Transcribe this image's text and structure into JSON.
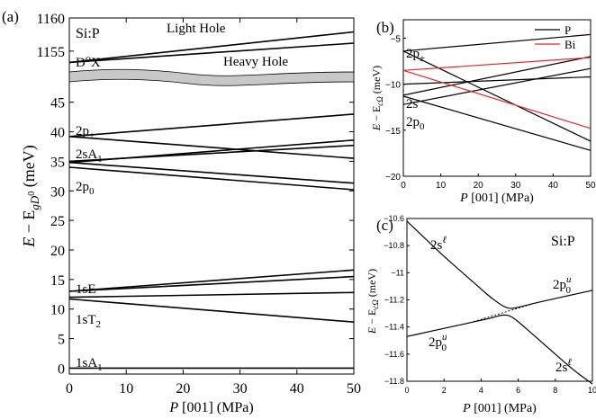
{
  "chart_data": [
    {
      "panel": "(a)",
      "type": "line",
      "annotation": "Si:P",
      "xlabel_parts": [
        "P",
        " [001] (MPa)"
      ],
      "ylabel_parts": [
        "E",
        " − E",
        "gD",
        "0",
        " (meV)"
      ],
      "xlim": [
        0,
        50
      ],
      "ylim_lower": [
        -1,
        48
      ],
      "ylim_upper": [
        1152,
        1160
      ],
      "xticks": [
        0,
        10,
        20,
        30,
        40,
        50
      ],
      "yticks_lower": [
        0,
        5,
        10,
        15,
        20,
        25,
        30,
        35,
        40,
        45
      ],
      "yticks_upper": [
        1155,
        1160
      ],
      "break_label": "D⁰X",
      "series": [
        {
          "name": "Light Hole",
          "x": [
            0,
            50
          ],
          "y": [
            1153.3,
            1157.9
          ]
        },
        {
          "name": "Heavy Hole",
          "x": [
            0,
            50
          ],
          "y": [
            1153.3,
            1156.2
          ]
        },
        {
          "name": "2p±",
          "x": [
            0,
            50
          ],
          "y": [
            39.2,
            43.0
          ]
        },
        {
          "name": "2p±",
          "x": [
            0,
            50
          ],
          "y": [
            39.2,
            35.5
          ]
        },
        {
          "name": "2sA1",
          "x": [
            0,
            50
          ],
          "y": [
            34.8,
            38.6
          ]
        },
        {
          "name": "2sA1",
          "x": [
            0,
            50
          ],
          "y": [
            35.0,
            37.7
          ]
        },
        {
          "name": "2p0",
          "x": [
            0,
            50
          ],
          "y": [
            34.8,
            31.3
          ]
        },
        {
          "name": "2p0",
          "x": [
            0,
            50
          ],
          "y": [
            34.0,
            30.2
          ]
        },
        {
          "name": "1sE",
          "x": [
            0,
            50
          ],
          "y": [
            13.0,
            16.6
          ]
        },
        {
          "name": "1sE",
          "x": [
            0,
            50
          ],
          "y": [
            13.0,
            15.5
          ]
        },
        {
          "name": "1sT2",
          "x": [
            0,
            50
          ],
          "y": [
            12.0,
            12.8
          ]
        },
        {
          "name": "1sT2",
          "x": [
            0,
            50
          ],
          "y": [
            11.7,
            7.8
          ]
        },
        {
          "name": "1sA1",
          "x": [
            0,
            50
          ],
          "y": [
            0,
            0
          ]
        }
      ],
      "labels": [
        {
          "text": "Light Hole"
        },
        {
          "text": "Heavy Hole"
        },
        {
          "text": "D⁰X"
        },
        {
          "base": "2p",
          "sub": "±"
        },
        {
          "base": "2sA",
          "sub": "1"
        },
        {
          "base": "2p",
          "sub": "0"
        },
        {
          "base": "1sE",
          "sub": ""
        },
        {
          "base": "1sT",
          "sub": "2"
        },
        {
          "base": "1sA",
          "sub": "1"
        }
      ]
    },
    {
      "panel": "(b)",
      "type": "line",
      "xlabel_parts": [
        "P",
        " [001] (MPa)"
      ],
      "ylabel_parts": [
        "E",
        " − E",
        "cΩ",
        "",
        " (meV)"
      ],
      "xlim": [
        0,
        50
      ],
      "ylim": [
        -20,
        -3
      ],
      "xticks": [
        0,
        10,
        20,
        30,
        40,
        50
      ],
      "yticks": [
        -5,
        -10,
        -15,
        -20
      ],
      "legend": {
        "position": "top-right",
        "entries": [
          {
            "name": "P",
            "color": "#000000"
          },
          {
            "name": "Bi",
            "color": "#e8262c"
          }
        ]
      },
      "series": [
        {
          "name": "P",
          "color": "#000000",
          "x": [
            0,
            50
          ],
          "y": [
            -6.4,
            -4.6
          ]
        },
        {
          "name": "P",
          "color": "#000000",
          "x": [
            0,
            50
          ],
          "y": [
            -6.4,
            -16.2
          ]
        },
        {
          "name": "P",
          "color": "#000000",
          "x": [
            0,
            50
          ],
          "y": [
            -10.0,
            -9.2
          ]
        },
        {
          "name": "P",
          "color": "#000000",
          "x": [
            0,
            50
          ],
          "y": [
            -11.2,
            -7.0
          ]
        },
        {
          "name": "P",
          "color": "#000000",
          "x": [
            0,
            50
          ],
          "y": [
            -11.3,
            -17.2
          ]
        },
        {
          "name": "P",
          "color": "#000000",
          "x": [
            0,
            50
          ],
          "y": [
            -12.2,
            -8.3
          ]
        },
        {
          "name": "Bi",
          "color": "#e8262c",
          "x": [
            0,
            50
          ],
          "y": [
            -8.5,
            -7.1
          ]
        },
        {
          "name": "Bi",
          "color": "#e8262c",
          "x": [
            0,
            50
          ],
          "y": [
            -8.5,
            -14.8
          ]
        }
      ],
      "labels": [
        {
          "base": "2p",
          "sub": "±"
        },
        {
          "base": "2s",
          "sub": ""
        },
        {
          "base": "2p",
          "sub": "0"
        }
      ]
    },
    {
      "panel": "(c)",
      "type": "line",
      "annotation": "Si:P",
      "xlabel_parts": [
        "P",
        " [001] (MPa)"
      ],
      "ylabel_parts": [
        "E",
        " − E",
        "cΩ",
        "",
        " (meV)"
      ],
      "xlim": [
        0,
        10
      ],
      "ylim": [
        -11.8,
        -10.6
      ],
      "xticks": [
        0,
        2,
        4,
        6,
        8,
        10
      ],
      "yticks": [
        -10.6,
        -10.8,
        -11,
        -11.2,
        -11.4,
        -11.6,
        -11.8
      ],
      "series": [
        {
          "name": "upper branch",
          "x": [
            0,
            1,
            2,
            3,
            4,
            4.5,
            5,
            5.3,
            5.6,
            6,
            7,
            8,
            9,
            10
          ],
          "y": [
            -10.62,
            -10.75,
            -10.88,
            -11.0,
            -11.12,
            -11.18,
            -11.23,
            -11.255,
            -11.265,
            -11.255,
            -11.22,
            -11.19,
            -11.16,
            -11.13
          ]
        },
        {
          "name": "lower branch",
          "x": [
            0,
            1,
            2,
            3,
            4,
            4.5,
            5,
            5.3,
            5.6,
            6,
            7,
            8,
            9,
            10
          ],
          "y": [
            -11.47,
            -11.44,
            -11.41,
            -11.38,
            -11.35,
            -11.335,
            -11.315,
            -11.31,
            -11.32,
            -11.36,
            -11.48,
            -11.6,
            -11.72,
            -11.82
          ]
        },
        {
          "name": "dashed",
          "dashed": true,
          "x": [
            3.6,
            7.0
          ],
          "y": [
            -11.36,
            -11.22
          ]
        }
      ],
      "labels": [
        {
          "base": "2s",
          "sup": "ℓ"
        },
        {
          "base": "2p",
          "sub": "0",
          "sup": "u"
        },
        {
          "base": "2p",
          "sub": "0",
          "sup": "u"
        },
        {
          "base": "2s",
          "sup": "ℓ"
        }
      ]
    }
  ]
}
